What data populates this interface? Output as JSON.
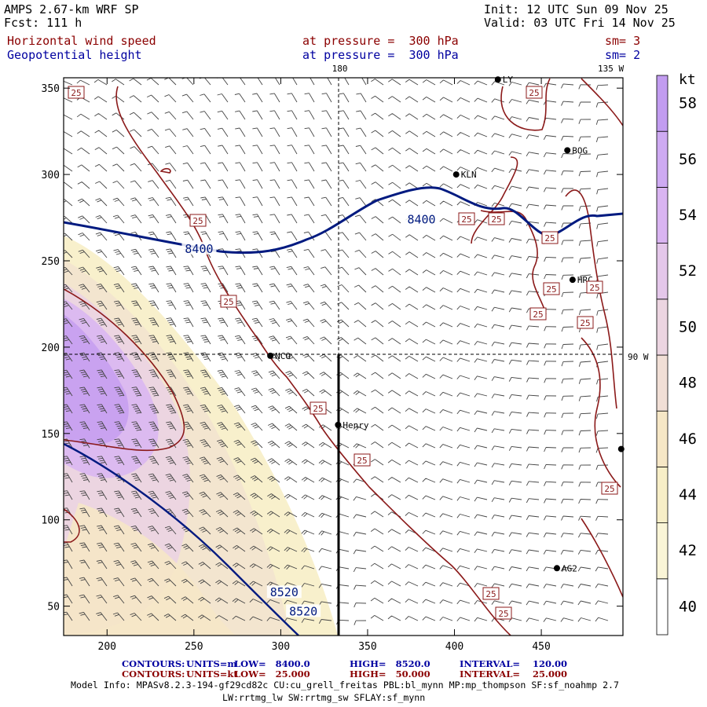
{
  "header": {
    "model": "AMPS 2.67-km WRF SP",
    "forecast": "Fcst: 111 h",
    "init": "Init: 12 UTC Sun 09 Nov 25",
    "valid": "Valid: 03 UTC Fri 14 Nov 25",
    "field1": "Horizontal wind speed",
    "field1_level": "at pressure =  300 hPa",
    "field1_smooth": "sm= 3",
    "field2": "Geopotential height",
    "field2_level": "at pressure =  300 hPa",
    "field2_smooth": "sm= 2"
  },
  "map": {
    "x_axis": {
      "min": 175,
      "max": 497,
      "ticks": [
        200,
        250,
        300,
        350,
        400,
        450
      ]
    },
    "y_axis": {
      "min": 33,
      "max": 356,
      "ticks": [
        50,
        100,
        150,
        200,
        250,
        300,
        350
      ]
    },
    "meridians": [
      {
        "label": "180",
        "x": 334
      },
      {
        "label": "135 W",
        "x": 490
      }
    ],
    "parallel": {
      "label": "90 W",
      "y": 195
    },
    "stations": [
      {
        "name": "NCO",
        "x": 294,
        "y": 195
      },
      {
        "name": "Henry",
        "x": 333,
        "y": 155
      },
      {
        "name": "KLN",
        "x": 401,
        "y": 300
      },
      {
        "name": "BOG",
        "x": 465,
        "y": 314
      },
      {
        "name": "HRC",
        "x": 468,
        "y": 239
      },
      {
        "name": "AG2",
        "x": 459,
        "y": 72
      },
      {
        "name": "LY",
        "x": 425,
        "y": 355
      },
      {
        "name": "",
        "x": 496,
        "y": 141
      }
    ],
    "height_contours": [
      {
        "label": "8400",
        "x": 253,
        "y": 256
      },
      {
        "label": "8400",
        "x": 381,
        "y": 273
      },
      {
        "label": "8520",
        "x": 302,
        "y": 57
      },
      {
        "label": "8520",
        "x": 313,
        "y": 46
      }
    ],
    "wind_contour_label": "25"
  },
  "colorbar": {
    "unit": "kt",
    "levels": [
      40,
      42,
      44,
      46,
      48,
      50,
      52,
      54,
      56,
      58
    ],
    "colors": [
      "#ffffff",
      "#faf5d7",
      "#f7eec7",
      "#f6e7c6",
      "#f1dfd6",
      "#ecd5e1",
      "#e4c7ea",
      "#d9b4f1",
      "#ceaaf2",
      "#c29cf0"
    ]
  },
  "footer": {
    "row1": {
      "label": "CONTOURS:",
      "units": "UNITS=m",
      "low": "LOW=   8400.0",
      "high": "HIGH=   8520.0",
      "interval": "INTERVAL=    120.00"
    },
    "row2": {
      "label": "CONTOURS:",
      "units": "UNITS=kt",
      "low": "LOW=   25.000",
      "high": "HIGH=   50.000",
      "interval": "INTERVAL=    25.000"
    },
    "model_info": "Model Info: MPASv8.2.3-194-gf29cd82c CU:cu_grell_freitas PBL:bl_mynn MP:mp_thompson SF:sf_noahmp 2.7",
    "model_info2": "LW:rrtmg_lw SW:rrtmg_sw SFLAY:sf_mynn"
  }
}
